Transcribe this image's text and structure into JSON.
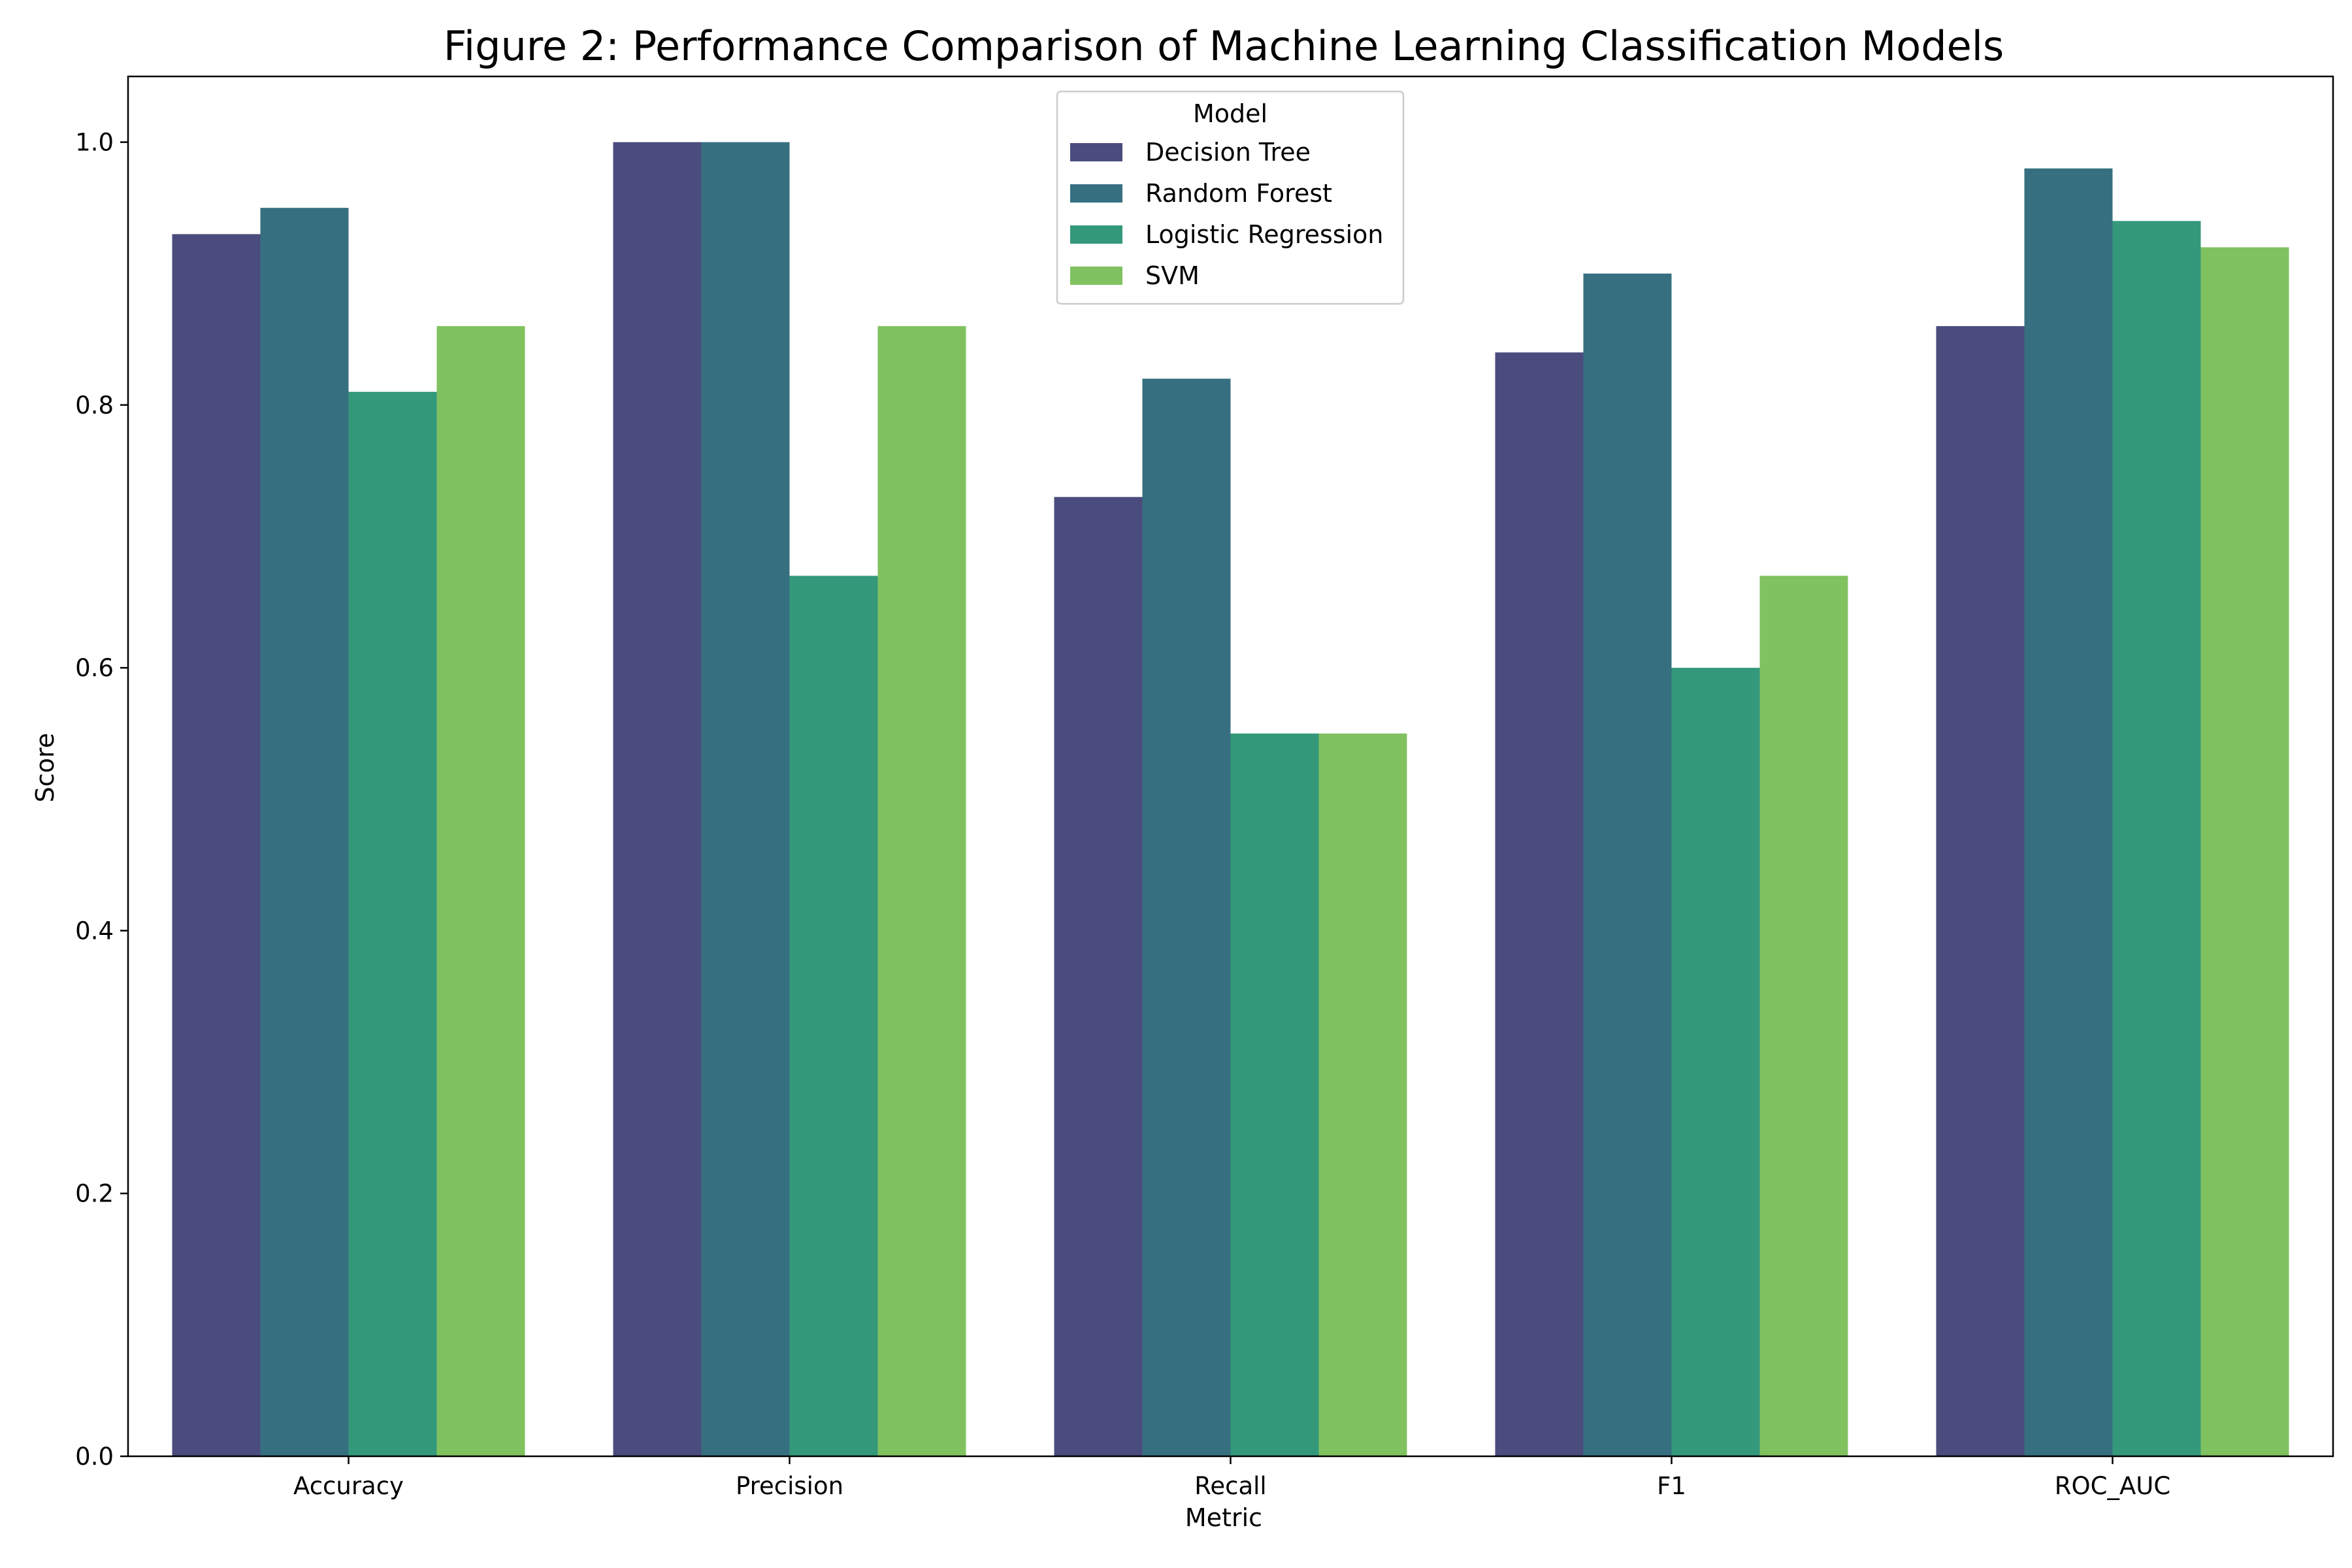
{
  "chart_data": {
    "type": "bar",
    "title": "Figure 2: Performance Comparison of Machine Learning Classification Models",
    "xlabel": "Metric",
    "ylabel": "Score",
    "categories": [
      "Accuracy",
      "Precision",
      "Recall",
      "F1",
      "ROC_AUC"
    ],
    "series": [
      {
        "name": "Decision Tree",
        "color": "#4a4c7d",
        "values": [
          0.93,
          1.0,
          0.73,
          0.84,
          0.86
        ]
      },
      {
        "name": "Random Forest",
        "color": "#367080",
        "values": [
          0.95,
          1.0,
          0.82,
          0.9,
          0.98
        ]
      },
      {
        "name": "Logistic Regression",
        "color": "#34987b",
        "values": [
          0.81,
          0.67,
          0.55,
          0.6,
          0.94
        ]
      },
      {
        "name": "SVM",
        "color": "#80c160",
        "values": [
          0.86,
          0.86,
          0.55,
          0.67,
          0.92
        ]
      }
    ],
    "ylim": [
      0,
      1.05
    ],
    "yticks": [
      0.0,
      0.2,
      0.4,
      0.6,
      0.8,
      1.0
    ],
    "ytick_labels": [
      "0.0",
      "0.2",
      "0.4",
      "0.6",
      "0.8",
      "1.0"
    ],
    "grid": false,
    "legend": {
      "title": "Model",
      "placement": "upper center"
    }
  }
}
